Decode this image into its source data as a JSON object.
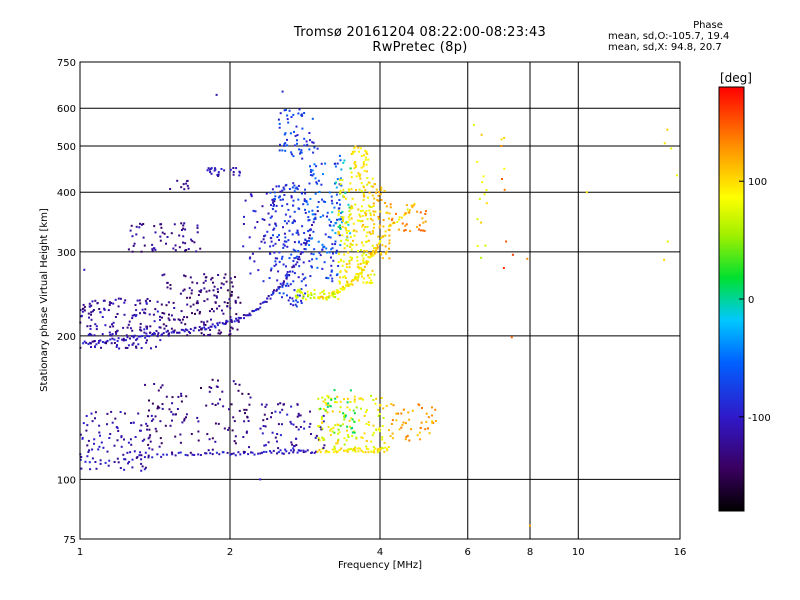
{
  "header": {
    "title_line1": "Tromsø 20161204 08:22:00-08:23:43",
    "title_line2": "RwPretec (8p)"
  },
  "phase_stats": {
    "title": "Phase",
    "line_o": "mean, sd,O:-105.7, 19.4",
    "line_x": "mean, sd,X:  94.8, 20.7"
  },
  "colorbar": {
    "label": "[deg]",
    "ticks": [
      "100",
      "0",
      "-100"
    ],
    "range": [
      -180,
      180
    ]
  },
  "chart_data": {
    "type": "scatter",
    "title": "Tromsø 20161204 08:22:00-08:23:43",
    "subtitle": "RwPretec (8p)",
    "xlabel": "Frequency [MHz]",
    "ylabel": "Stationary phase Virtual Height [km]",
    "xscale": "log",
    "yscale": "log",
    "xlim": [
      1,
      16
    ],
    "ylim": [
      75,
      750
    ],
    "grid": true,
    "xticks": [
      1,
      2,
      4,
      6,
      8,
      10,
      16
    ],
    "xtick_labels": [
      "1",
      "2",
      "4",
      "6",
      "8",
      "10",
      "16"
    ],
    "yticks": [
      75,
      100,
      200,
      300,
      400,
      500,
      600,
      750
    ],
    "ytick_labels": [
      "75",
      "100",
      "200",
      "300",
      "400",
      "500",
      "600",
      "750"
    ],
    "color_by": "phase [deg]",
    "series": [
      {
        "name": "O",
        "phase_mean": -105.7,
        "phase_sd": 19.4,
        "trace": [
          [
            1.0,
            192
          ],
          [
            1.1,
            194
          ],
          [
            1.2,
            197
          ],
          [
            1.3,
            199
          ],
          [
            1.4,
            201
          ],
          [
            1.5,
            202
          ],
          [
            1.6,
            204
          ],
          [
            1.7,
            206
          ],
          [
            1.8,
            208
          ],
          [
            1.9,
            211
          ],
          [
            2.0,
            214
          ],
          [
            2.1,
            218
          ],
          [
            2.2,
            223
          ],
          [
            2.3,
            230
          ],
          [
            2.4,
            240
          ],
          [
            2.5,
            252
          ],
          [
            2.6,
            265
          ],
          [
            2.7,
            280
          ],
          [
            2.8,
            300
          ],
          [
            2.9,
            330
          ],
          [
            3.0,
            370
          ]
        ],
        "lower_trace": [
          [
            1.0,
            110
          ],
          [
            1.2,
            109
          ],
          [
            1.4,
            112
          ],
          [
            1.6,
            113
          ],
          [
            1.8,
            113
          ],
          [
            2.0,
            113
          ],
          [
            2.2,
            113
          ],
          [
            2.4,
            114
          ],
          [
            2.6,
            114
          ],
          [
            2.8,
            114
          ],
          [
            3.0,
            115
          ]
        ]
      },
      {
        "name": "X",
        "phase_mean": 94.8,
        "phase_sd": 20.7,
        "trace": [
          [
            3.0,
            240
          ],
          [
            3.1,
            242
          ],
          [
            3.2,
            245
          ],
          [
            3.3,
            248
          ],
          [
            3.4,
            252
          ],
          [
            3.5,
            258
          ],
          [
            3.6,
            266
          ],
          [
            3.7,
            276
          ],
          [
            3.8,
            290
          ],
          [
            3.9,
            300
          ],
          [
            4.0,
            315
          ],
          [
            4.2,
            340
          ],
          [
            4.5,
            360
          ],
          [
            4.7,
            380
          ]
        ],
        "lower_trace": [
          [
            3.0,
            115
          ],
          [
            3.2,
            115
          ],
          [
            3.4,
            115
          ],
          [
            3.6,
            115
          ],
          [
            3.8,
            115
          ],
          [
            4.0,
            115
          ],
          [
            4.2,
            116
          ]
        ]
      }
    ],
    "clusters": [
      {
        "f": [
          1.0,
          1.45
        ],
        "h": [
          188,
          240
        ],
        "ph": [
          -140,
          -95
        ],
        "n": 160
      },
      {
        "f": [
          1.45,
          2.1
        ],
        "h": [
          200,
          270
        ],
        "ph": [
          -150,
          -115
        ],
        "n": 150
      },
      {
        "f": [
          1.25,
          1.75
        ],
        "h": [
          300,
          345
        ],
        "ph": [
          -145,
          -110
        ],
        "n": 60
      },
      {
        "f": [
          1.5,
          1.7
        ],
        "h": [
          405,
          425
        ],
        "ph": [
          -140,
          -120
        ],
        "n": 10
      },
      {
        "f": [
          1.8,
          2.1
        ],
        "h": [
          430,
          450
        ],
        "ph": [
          -120,
          -90
        ],
        "n": 25
      },
      {
        "f": [
          2.1,
          2.5
        ],
        "h": [
          260,
          400
        ],
        "ph": [
          -120,
          -80
        ],
        "n": 50
      },
      {
        "f": [
          2.4,
          2.85
        ],
        "h": [
          230,
          420
        ],
        "ph": [
          -105,
          -60
        ],
        "n": 170
      },
      {
        "f": [
          2.5,
          3.0
        ],
        "h": [
          470,
          600
        ],
        "ph": [
          -100,
          -55
        ],
        "n": 60
      },
      {
        "f": [
          2.85,
          3.35
        ],
        "h": [
          260,
          460
        ],
        "ph": [
          -100,
          -40
        ],
        "n": 130
      },
      {
        "f": [
          3.2,
          3.5
        ],
        "h": [
          320,
          480
        ],
        "ph": [
          -60,
          20
        ],
        "n": 30
      },
      {
        "f": [
          3.3,
          3.9
        ],
        "h": [
          255,
          430
        ],
        "ph": [
          70,
          115
        ],
        "n": 200
      },
      {
        "f": [
          3.5,
          3.8
        ],
        "h": [
          430,
          500
        ],
        "ph": [
          80,
          115
        ],
        "n": 40
      },
      {
        "f": [
          3.8,
          4.2
        ],
        "h": [
          290,
          420
        ],
        "ph": [
          100,
          125
        ],
        "n": 60
      },
      {
        "f": [
          4.2,
          5.0
        ],
        "h": [
          330,
          380
        ],
        "ph": [
          115,
          150
        ],
        "n": 30
      },
      {
        "f": [
          2.7,
          3.3
        ],
        "h": [
          237,
          250
        ],
        "ph": [
          50,
          90
        ],
        "n": 40
      },
      {
        "f": [
          1.0,
          1.4
        ],
        "h": [
          104,
          140
        ],
        "ph": [
          -135,
          -95
        ],
        "n": 90
      },
      {
        "f": [
          1.35,
          2.2
        ],
        "h": [
          112,
          162
        ],
        "ph": [
          -150,
          -115
        ],
        "n": 120
      },
      {
        "f": [
          2.3,
          3.1
        ],
        "h": [
          115,
          145
        ],
        "ph": [
          -140,
          -90
        ],
        "n": 70
      },
      {
        "f": [
          3.0,
          4.1
        ],
        "h": [
          115,
          150
        ],
        "ph": [
          60,
          110
        ],
        "n": 130
      },
      {
        "f": [
          3.0,
          3.6
        ],
        "h": [
          125,
          155
        ],
        "ph": [
          0,
          60
        ],
        "n": 30
      },
      {
        "f": [
          4.1,
          5.2
        ],
        "h": [
          120,
          145
        ],
        "ph": [
          105,
          140
        ],
        "n": 50
      },
      {
        "f": [
          6.1,
          6.6
        ],
        "h": [
          290,
          600
        ],
        "ph": [
          60,
          110
        ],
        "n": 14
      },
      {
        "f": [
          7.0,
          7.4
        ],
        "h": [
          195,
          560
        ],
        "ph": [
          80,
          170
        ],
        "n": 10
      },
      {
        "f": [
          14.8,
          16.0
        ],
        "h": [
          270,
          560
        ],
        "ph": [
          70,
          110
        ],
        "n": 6
      }
    ],
    "isolated_points": [
      [
        1.88,
        640,
        -110
      ],
      [
        2.55,
        650,
        -90
      ],
      [
        10.4,
        400,
        100
      ],
      [
        8.0,
        80,
        120
      ],
      [
        7.9,
        290,
        130
      ],
      [
        1.02,
        275,
        -105
      ],
      [
        2.3,
        100,
        -100
      ]
    ]
  }
}
